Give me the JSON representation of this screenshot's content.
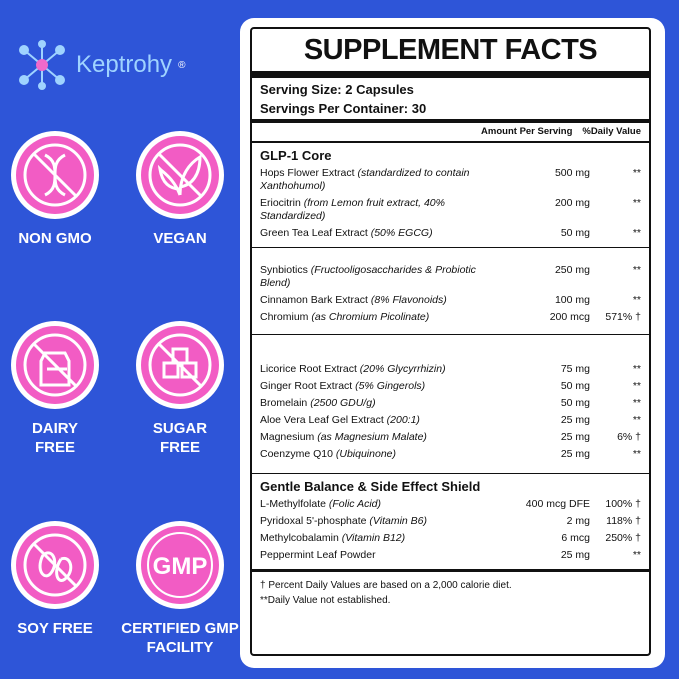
{
  "logo": {
    "brand": "Keptrohy",
    "mark": "®"
  },
  "badges": [
    {
      "label": "NON GMO"
    },
    {
      "label": "VEGAN"
    },
    {
      "label": "DAIRY FREE"
    },
    {
      "label": "SUGAR FREE"
    },
    {
      "label": "SOY FREE"
    },
    {
      "label": "CERTIFIED GMP FACILITY",
      "icon_text": "GMP"
    }
  ],
  "facts": {
    "title": "SUPPLEMENT FACTS",
    "serving_size": "Serving Size: 2 Capsules",
    "servings_per_container": "Servings Per Container: 30",
    "header_amount": "Amount Per Serving",
    "header_dv": "%Daily Value",
    "sections": [
      {
        "heading": "GLP-1 Core",
        "rows": [
          {
            "name": "Hops Flower Extract",
            "note": "(standardized to contain Xanthohumol)",
            "amount": "500 mg",
            "dv": "**"
          },
          {
            "name": "Eriocitrin",
            "note": "(from Lemon fruit extract, 40% Standardized)",
            "amount": "200 mg",
            "dv": "**"
          },
          {
            "name": "Green Tea Leaf Extract",
            "note": "(50% EGCG)",
            "amount": "50 mg",
            "dv": "**"
          }
        ]
      },
      {
        "rows": [
          {
            "name": "Synbiotics",
            "note": "(Fructooligosaccharides & Probiotic Blend)",
            "amount": "250 mg",
            "dv": "**"
          },
          {
            "name": "Cinnamon Bark Extract",
            "note": "(8% Flavonoids)",
            "amount": "100 mg",
            "dv": "**"
          },
          {
            "name": "Chromium",
            "note": "(as Chromium Picolinate)",
            "amount": "200 mcg",
            "dv": "571% †"
          }
        ]
      },
      {
        "rows": [
          {
            "name": "Licorice Root Extract",
            "note": "(20% Glycyrrhizin)",
            "amount": "75 mg",
            "dv": "**"
          },
          {
            "name": "Ginger Root Extract",
            "note": "(5% Gingerols)",
            "amount": "50 mg",
            "dv": "**"
          },
          {
            "name": "Bromelain",
            "note": "(2500 GDU/g)",
            "amount": "50 mg",
            "dv": "**"
          },
          {
            "name": "Aloe Vera Leaf Gel Extract",
            "note": "(200:1)",
            "amount": "25 mg",
            "dv": "**"
          },
          {
            "name": "Magnesium",
            "note": "(as Magnesium Malate)",
            "amount": "25 mg",
            "dv": "6% †"
          },
          {
            "name": "Coenzyme Q10",
            "note": "(Ubiquinone)",
            "amount": "25 mg",
            "dv": "**"
          }
        ]
      },
      {
        "heading": "Gentle Balance & Side Effect Shield",
        "rows": [
          {
            "name": "L-Methylfolate",
            "note": "(Folic Acid)",
            "amount": "400 mcg DFE",
            "dv": "100% †"
          },
          {
            "name": "Pyridoxal 5'-phosphate",
            "note": "(Vitamin B6)",
            "amount": "2 mg",
            "dv": "118% †"
          },
          {
            "name": "Methylcobalamin",
            "note": "(Vitamin B12)",
            "amount": "6 mcg",
            "dv": "250% †"
          },
          {
            "name": "Peppermint Leaf Powder",
            "amount": "25 mg",
            "dv": "**"
          }
        ]
      }
    ],
    "footnotes": [
      "† Percent Daily Values are based on a 2,000 calorie diet.",
      "**Daily Value not established."
    ]
  }
}
